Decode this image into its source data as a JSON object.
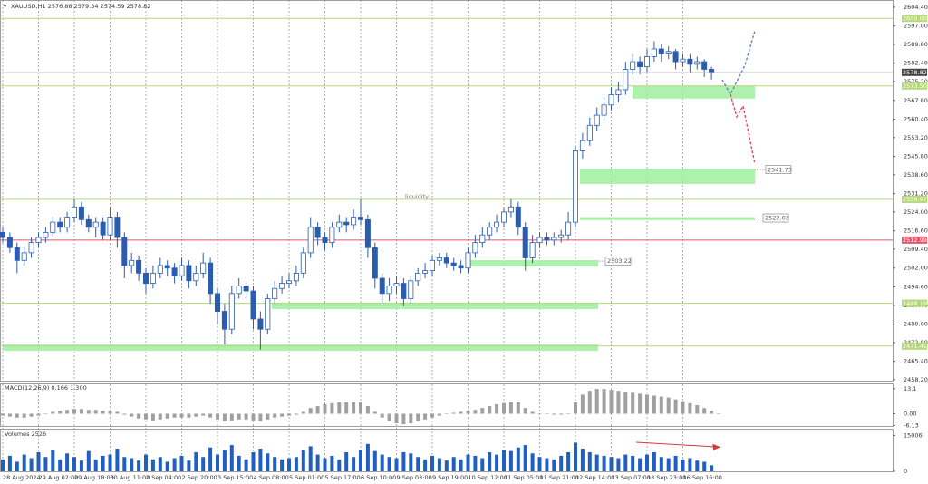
{
  "chart_data": [
    {
      "type": "candlestick",
      "title": "XAUUSD,H1  2576.88 2579.34 2574.59 2578.82",
      "annotation": "liquidity",
      "categories": [
        "28 Aug 2024",
        null,
        null,
        null,
        null,
        "29 Aug 02:00",
        null,
        null,
        null,
        null,
        "29 Aug 18:00",
        null,
        null,
        null,
        null,
        "30 Aug 11:00",
        null,
        null,
        null,
        null,
        "2 Sep 04:00",
        null,
        null,
        null,
        null,
        "2 Sep 20:00",
        null,
        null,
        null,
        null,
        "3 Sep 15:00",
        null,
        null,
        null,
        null,
        "4 Sep 08:00",
        null,
        null,
        null,
        null,
        "5 Sep 01:00",
        null,
        null,
        null,
        null,
        "5 Sep 17:00",
        null,
        null,
        null,
        null,
        "6 Sep 10:00",
        null,
        null,
        null,
        null,
        "9 Sep 03:00",
        null,
        null,
        null,
        null,
        "9 Sep 19:00",
        null,
        null,
        null,
        null,
        "10 Sep 12:00",
        null,
        null,
        null,
        null,
        "11 Sep 05:00",
        null,
        null,
        null,
        null,
        "11 Sep 21:00",
        null,
        null,
        null,
        null,
        "12 Sep 14:00",
        null,
        null,
        null,
        null,
        "13 Sep 07:00",
        null,
        null,
        null,
        null,
        "13 Sep 23:00",
        null,
        null,
        null,
        null,
        "16 Sep 16:00",
        null,
        null,
        null,
        null
      ],
      "open": [
        2516,
        2514,
        2510,
        2505,
        2508,
        2512,
        2514,
        2516,
        2520,
        2518,
        2522,
        2526,
        2521,
        2518,
        2520,
        2515,
        2522,
        2514,
        2503,
        2505,
        2500,
        2496,
        2500,
        2503,
        2502,
        2499,
        2503,
        2497,
        2500,
        2504,
        2492,
        2485,
        2478,
        2492,
        2495,
        2493,
        2482,
        2478,
        2490,
        2494,
        2496,
        2497,
        2500,
        2508,
        2518,
        2514,
        2512,
        2518,
        2520,
        2519,
        2522,
        2521,
        2510,
        2498,
        2492,
        2495,
        2496,
        2490,
        2497,
        2500,
        2501,
        2505,
        2506,
        2504,
        2503,
        2502,
        2508,
        2512,
        2515,
        2518,
        2520,
        2524,
        2526,
        2518,
        2506,
        2512,
        2514,
        2513,
        2514,
        2515,
        2520,
        2548,
        2552,
        2558,
        2562,
        2566,
        2570,
        2572,
        2580,
        2583,
        2581,
        2585,
        2588,
        2586,
        2587,
        2583,
        2584,
        2582,
        2583,
        2580
      ],
      "high": [
        2518,
        2516,
        2512,
        2510,
        2514,
        2516,
        2518,
        2522,
        2522,
        2524,
        2529,
        2528,
        2523,
        2522,
        2522,
        2526,
        2524,
        2516,
        2508,
        2507,
        2502,
        2503,
        2506,
        2505,
        2504,
        2506,
        2505,
        2503,
        2508,
        2506,
        2494,
        2488,
        2495,
        2498,
        2497,
        2495,
        2485,
        2492,
        2497,
        2499,
        2500,
        2503,
        2510,
        2522,
        2520,
        2516,
        2520,
        2523,
        2522,
        2525,
        2529,
        2523,
        2512,
        2500,
        2498,
        2499,
        2498,
        2499,
        2502,
        2504,
        2507,
        2508,
        2508,
        2506,
        2505,
        2510,
        2515,
        2518,
        2520,
        2523,
        2526,
        2529,
        2528,
        2520,
        2515,
        2516,
        2516,
        2516,
        2517,
        2524,
        2550,
        2555,
        2561,
        2565,
        2569,
        2573,
        2575,
        2583,
        2586,
        2585,
        2588,
        2591,
        2590,
        2589,
        2588,
        2586,
        2586,
        2585,
        2584,
        2581
      ],
      "low": [
        2512,
        2508,
        2500,
        2503,
        2506,
        2510,
        2512,
        2514,
        2516,
        2516,
        2520,
        2519,
        2516,
        2514,
        2513,
        2513,
        2510,
        2498,
        2500,
        2497,
        2492,
        2494,
        2498,
        2499,
        2496,
        2497,
        2494,
        2495,
        2498,
        2488,
        2480,
        2472,
        2476,
        2490,
        2490,
        2478,
        2470,
        2476,
        2488,
        2492,
        2494,
        2495,
        2498,
        2506,
        2511,
        2509,
        2510,
        2516,
        2516,
        2517,
        2519,
        2506,
        2494,
        2488,
        2489,
        2492,
        2487,
        2488,
        2495,
        2498,
        2499,
        2503,
        2502,
        2501,
        2500,
        2500,
        2506,
        2510,
        2513,
        2516,
        2518,
        2522,
        2515,
        2501,
        2504,
        2510,
        2511,
        2511,
        2512,
        2513,
        2518,
        2545,
        2550,
        2556,
        2560,
        2564,
        2567,
        2570,
        2578,
        2578,
        2579,
        2583,
        2583,
        2584,
        2580,
        2581,
        2579,
        2580,
        2577,
        2576
      ],
      "close": [
        2514,
        2510,
        2505,
        2508,
        2512,
        2514,
        2516,
        2520,
        2518,
        2522,
        2526,
        2521,
        2518,
        2520,
        2515,
        2522,
        2514,
        2503,
        2505,
        2500,
        2496,
        2500,
        2503,
        2502,
        2499,
        2503,
        2497,
        2500,
        2504,
        2492,
        2485,
        2478,
        2492,
        2495,
        2493,
        2482,
        2478,
        2490,
        2494,
        2496,
        2497,
        2500,
        2508,
        2518,
        2514,
        2512,
        2518,
        2520,
        2519,
        2522,
        2521,
        2510,
        2498,
        2492,
        2495,
        2496,
        2490,
        2497,
        2500,
        2501,
        2505,
        2506,
        2504,
        2503,
        2502,
        2508,
        2512,
        2515,
        2518,
        2520,
        2524,
        2526,
        2518,
        2506,
        2512,
        2514,
        2513,
        2514,
        2515,
        2520,
        2548,
        2552,
        2558,
        2562,
        2566,
        2570,
        2572,
        2580,
        2583,
        2581,
        2585,
        2588,
        2586,
        2587,
        2583,
        2584,
        2582,
        2583,
        2580,
        2578.82
      ],
      "color": "#2a5db0",
      "last": {
        "value": 2578.82,
        "label": "2578.82"
      },
      "ylim": [
        2457.8,
        2607.2
      ],
      "yticks": [
        {
          "value": 2604.4,
          "label": "2604.40"
        },
        {
          "value": 2597,
          "label": "2597.00"
        },
        {
          "value": 2589.8,
          "label": "2589.80"
        },
        {
          "value": 2582.4,
          "label": "2582.40"
        },
        {
          "value": 2575.2,
          "label": "2575.20"
        },
        {
          "value": 2567.8,
          "label": "2567.80"
        },
        {
          "value": 2560.4,
          "label": "2560.40"
        },
        {
          "value": 2553.2,
          "label": "2553.20"
        },
        {
          "value": 2545.8,
          "label": "2545.80"
        },
        {
          "value": 2538.6,
          "label": "2538.60"
        },
        {
          "value": 2531.2,
          "label": "2531.20"
        },
        {
          "value": 2524,
          "label": "2524.00"
        },
        {
          "value": 2516.6,
          "label": "2516.60"
        },
        {
          "value": 2509.4,
          "label": "2509.40"
        },
        {
          "value": 2502,
          "label": "2502.00"
        },
        {
          "value": 2494.6,
          "label": "2494.60"
        },
        {
          "value": 2487.4,
          "label": "2487.40"
        },
        {
          "value": 2480,
          "label": "2480.00"
        },
        {
          "value": 2472.8,
          "label": "2472.80"
        },
        {
          "value": 2465.4,
          "label": "2465.40"
        },
        {
          "value": 2458.2,
          "label": "2458.20"
        }
      ],
      "levels": [
        {
          "value": 2600,
          "label": "2600.00",
          "color": "#b5d67a"
        },
        {
          "value": 2573.5,
          "label": "2573.50",
          "color": "#b5d67a"
        },
        {
          "value": 2528.97,
          "label": "2528.97",
          "color": "#b5d67a"
        },
        {
          "value": 2512.99,
          "label": "2512.99",
          "color": "#e0566b"
        },
        {
          "value": 2488.19,
          "label": "2488.19",
          "color": "#b5d67a"
        },
        {
          "value": 2471.41,
          "label": "2471.41",
          "color": "#b5d67a"
        }
      ],
      "zones": [
        {
          "high": 2573.5,
          "low": 2568.5
        },
        {
          "high": 2541,
          "low": 2535,
          "label": "2541.73"
        },
        {
          "high": 2522,
          "low": 2520.8,
          "label": "2522.03"
        },
        {
          "high": 2505.1,
          "low": 2502.6,
          "label": "2503.22"
        },
        {
          "high": 2488.4,
          "low": 2485.9
        },
        {
          "high": 2472,
          "low": 2469.5
        }
      ],
      "zone_color": "#9ef09e",
      "grid": true
    },
    {
      "type": "bar",
      "title": "MACD(12,26,9) 0.166 1.300",
      "color": "#a0a0a0",
      "values": [
        -1,
        -1.5,
        -2,
        -2,
        -1.5,
        -1,
        0,
        1,
        1.5,
        2,
        2.5,
        2.5,
        2,
        2,
        1.5,
        1.5,
        1,
        -0.5,
        -1.5,
        -2.5,
        -3,
        -3.5,
        -3,
        -2.5,
        -2,
        -2,
        -2,
        -1.5,
        -1,
        -2,
        -3,
        -4,
        -3.5,
        -3,
        -3,
        -3.5,
        -4,
        -3,
        -2,
        -1.5,
        -1,
        -0.5,
        1,
        3,
        4,
        5,
        5.5,
        6,
        6,
        6,
        6,
        4,
        1,
        -2,
        -4,
        -5,
        -5.5,
        -5,
        -4,
        -3,
        -2,
        -1,
        0,
        0.5,
        1,
        1.5,
        2,
        3,
        4,
        5,
        5.5,
        6,
        6,
        3,
        1,
        0,
        0,
        -0.5,
        -0.5,
        0,
        6,
        10,
        12,
        13,
        13,
        12.5,
        12,
        11.5,
        11,
        10.5,
        10,
        9.5,
        9,
        8.5,
        7.5,
        6.5,
        5.5,
        4.5,
        3,
        1.5,
        0.166
      ],
      "ylim": [
        -6.4,
        15.4
      ],
      "yticks": [
        13.1,
        {
          "value": 0,
          "label": "0.00"
        },
        -6.13
      ]
    },
    {
      "type": "bar",
      "title": "Volumes 2526",
      "color": "#1f5fc2",
      "values": [
        5000,
        6500,
        4000,
        7000,
        5500,
        8000,
        6000,
        9000,
        5000,
        7500,
        6000,
        4500,
        8500,
        5000,
        6500,
        7000,
        9500,
        6000,
        5500,
        4500,
        7000,
        5000,
        6000,
        4000,
        5500,
        6500,
        4500,
        8000,
        6000,
        10000,
        7000,
        9000,
        11000,
        6500,
        5000,
        8000,
        9500,
        7500,
        6000,
        5000,
        5500,
        6000,
        9000,
        10500,
        7000,
        5500,
        6500,
        5000,
        8000,
        6000,
        9000,
        11500,
        8500,
        7000,
        6000,
        5500,
        8000,
        7500,
        6000,
        5000,
        6500,
        5500,
        4500,
        6000,
        5000,
        7000,
        6500,
        5500,
        8000,
        7000,
        9000,
        8500,
        10000,
        11000,
        7500,
        6000,
        5500,
        5000,
        6500,
        8000,
        12000,
        9500,
        8000,
        7000,
        6500,
        6000,
        5500,
        7000,
        6500,
        5500,
        7000,
        8000,
        6000,
        5500,
        6500,
        5000,
        5500,
        4500,
        4000,
        2526
      ],
      "ylim": [
        0,
        17500
      ],
      "yticks": [
        15006,
        0
      ]
    }
  ]
}
